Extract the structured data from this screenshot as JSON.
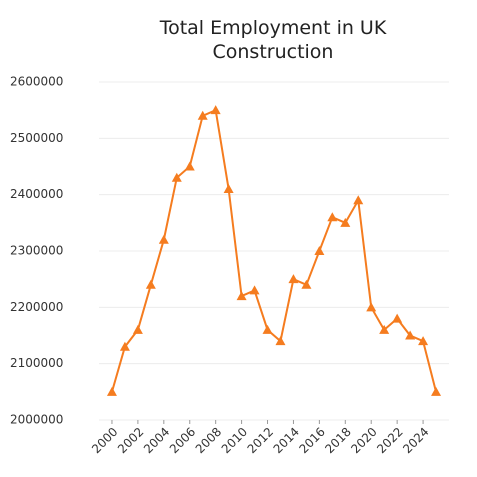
{
  "chart_data": {
    "type": "line",
    "title": "Total Employment in UK Construction",
    "x": [
      2000,
      2001,
      2002,
      2003,
      2004,
      2005,
      2006,
      2007,
      2008,
      2009,
      2010,
      2011,
      2012,
      2013,
      2014,
      2015,
      2016,
      2017,
      2018,
      2019,
      2020,
      2021,
      2022,
      2023,
      2024,
      2025
    ],
    "series": [
      {
        "name": "Total Employment",
        "color": "#f57c1f",
        "values": [
          2050000,
          2130000,
          2160000,
          2240000,
          2320000,
          2430000,
          2450000,
          2540000,
          2550000,
          2410000,
          2220000,
          2230000,
          2160000,
          2140000,
          2250000,
          2240000,
          2300000,
          2360000,
          2350000,
          2390000,
          2200000,
          2160000,
          2180000,
          2150000,
          2140000,
          2050000
        ]
      }
    ],
    "xlim": [
      1999,
      2026
    ],
    "xticks": [
      2000,
      2002,
      2004,
      2006,
      2008,
      2010,
      2012,
      2014,
      2016,
      2018,
      2020,
      2022,
      2024
    ],
    "ylim": [
      2000000,
      2600000
    ],
    "yticks": [
      2000000,
      2100000,
      2200000,
      2300000,
      2400000,
      2500000,
      2600000
    ],
    "grid": true,
    "marker": "triangle"
  }
}
